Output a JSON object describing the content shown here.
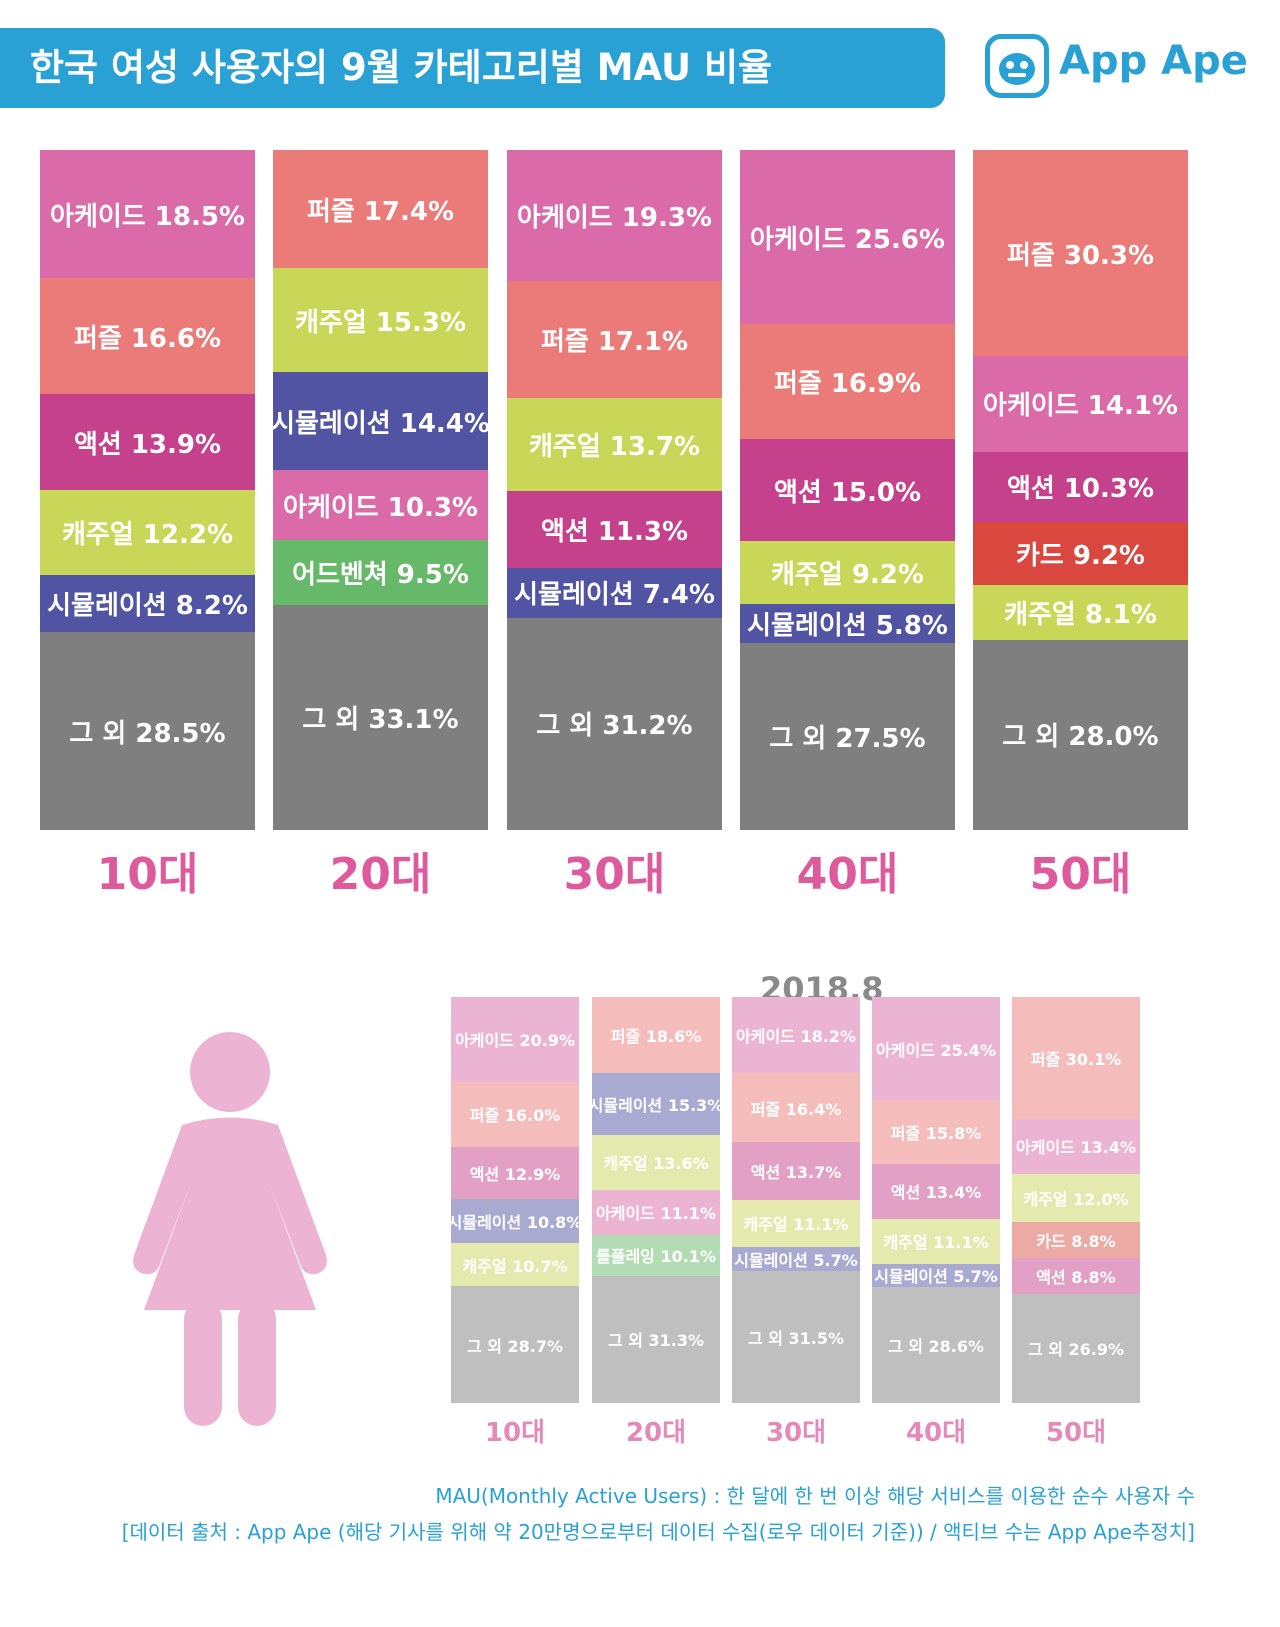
{
  "title": "한국 여성 사용자의 9월 카테고리별 MAU 비율",
  "brand": {
    "name": "App Ape",
    "color": "#29a1d4",
    "icon": "ape-face-icon"
  },
  "colors": {
    "아케이드": "#da6ba8",
    "퍼즐": "#ea7b79",
    "액션": "#c5418b",
    "캐주얼": "#c9d758",
    "시뮬레이션": "#5154a3",
    "어드벤쳐": "#67b96a",
    "카드": "#d9473f",
    "롤플레잉": "#67b96a",
    "그 외": "#7f7f7f"
  },
  "chart_data": [
    {
      "type": "bar",
      "stacked": true,
      "categories": [
        "10대",
        "20대",
        "30대",
        "40대",
        "50대"
      ],
      "columns": [
        {
          "age": "10대",
          "segments": [
            {
              "name": "아케이드",
              "value": 18.5,
              "label": "아케이드 18.5%"
            },
            {
              "name": "퍼즐",
              "value": 16.6,
              "label": "퍼즐 16.6%"
            },
            {
              "name": "액션",
              "value": 13.9,
              "label": "액션 13.9%"
            },
            {
              "name": "캐주얼",
              "value": 12.2,
              "label": "캐주얼 12.2%"
            },
            {
              "name": "시뮬레이션",
              "value": 8.2,
              "label": "시뮬레이션 8.2%"
            },
            {
              "name": "그 외",
              "value": 28.5,
              "label": "그 외 28.5%"
            }
          ]
        },
        {
          "age": "20대",
          "segments": [
            {
              "name": "퍼즐",
              "value": 17.4,
              "label": "퍼즐 17.4%"
            },
            {
              "name": "캐주얼",
              "value": 15.3,
              "label": "캐주얼 15.3%"
            },
            {
              "name": "시뮬레이션",
              "value": 14.4,
              "label": "시뮬레이션 14.4%"
            },
            {
              "name": "아케이드",
              "value": 10.3,
              "label": "아케이드 10.3%"
            },
            {
              "name": "어드벤쳐",
              "value": 9.5,
              "label": "어드벤쳐 9.5%"
            },
            {
              "name": "그 외",
              "value": 33.1,
              "label": "그 외 33.1%"
            }
          ]
        },
        {
          "age": "30대",
          "segments": [
            {
              "name": "아케이드",
              "value": 19.3,
              "label": "아케이드 19.3%"
            },
            {
              "name": "퍼즐",
              "value": 17.1,
              "label": "퍼즐 17.1%"
            },
            {
              "name": "캐주얼",
              "value": 13.7,
              "label": "캐주얼 13.7%"
            },
            {
              "name": "액션",
              "value": 11.3,
              "label": "액션 11.3%"
            },
            {
              "name": "시뮬레이션",
              "value": 7.4,
              "label": "시뮬레이션 7.4%"
            },
            {
              "name": "그 외",
              "value": 31.2,
              "label": "그 외 31.2%"
            }
          ]
        },
        {
          "age": "40대",
          "segments": [
            {
              "name": "아케이드",
              "value": 25.6,
              "label": "아케이드 25.6%"
            },
            {
              "name": "퍼즐",
              "value": 16.9,
              "label": "퍼즐 16.9%"
            },
            {
              "name": "액션",
              "value": 15.0,
              "label": "액션 15.0%"
            },
            {
              "name": "캐주얼",
              "value": 9.2,
              "label": "캐주얼 9.2%"
            },
            {
              "name": "시뮬레이션",
              "value": 5.8,
              "label": "시뮬레이션 5.8%"
            },
            {
              "name": "그 외",
              "value": 27.5,
              "label": "그 외 27.5%"
            }
          ]
        },
        {
          "age": "50대",
          "segments": [
            {
              "name": "퍼즐",
              "value": 30.3,
              "label": "퍼즐 30.3%"
            },
            {
              "name": "아케이드",
              "value": 14.1,
              "label": "아케이드 14.1%"
            },
            {
              "name": "액션",
              "value": 10.3,
              "label": "액션 10.3%"
            },
            {
              "name": "카드",
              "value": 9.2,
              "label": "카드 9.2%"
            },
            {
              "name": "캐주얼",
              "value": 8.1,
              "label": "캐주얼 8.1%"
            },
            {
              "name": "그 외",
              "value": 28.0,
              "label": "그 외 28.0%"
            }
          ]
        }
      ]
    },
    {
      "type": "bar",
      "stacked": true,
      "title": "2018.8",
      "faded": true,
      "categories": [
        "10대",
        "20대",
        "30대",
        "40대",
        "50대"
      ],
      "columns": [
        {
          "age": "10대",
          "segments": [
            {
              "name": "아케이드",
              "value": 20.9,
              "label": "아케이드 20.9%"
            },
            {
              "name": "퍼즐",
              "value": 16.0,
              "label": "퍼즐 16.0%"
            },
            {
              "name": "액션",
              "value": 12.9,
              "label": "액션 12.9%"
            },
            {
              "name": "시뮬레이션",
              "value": 10.8,
              "label": "시뮬레이션 10.8%"
            },
            {
              "name": "캐주얼",
              "value": 10.7,
              "label": "캐주얼 10.7%"
            },
            {
              "name": "그 외",
              "value": 28.7,
              "label": "그 외 28.7%"
            }
          ]
        },
        {
          "age": "20대",
          "segments": [
            {
              "name": "퍼즐",
              "value": 18.6,
              "label": "퍼즐 18.6%"
            },
            {
              "name": "시뮬레이션",
              "value": 15.3,
              "label": "시뮬레이션 15.3%"
            },
            {
              "name": "캐주얼",
              "value": 13.6,
              "label": "캐주얼 13.6%"
            },
            {
              "name": "아케이드",
              "value": 11.1,
              "label": "아케이드 11.1%"
            },
            {
              "name": "롤플레잉",
              "value": 10.1,
              "label": "롤플레잉 10.1%"
            },
            {
              "name": "그 외",
              "value": 31.3,
              "label": "그 외 31.3%"
            }
          ]
        },
        {
          "age": "30대",
          "segments": [
            {
              "name": "아케이드",
              "value": 18.2,
              "label": "아케이드 18.2%"
            },
            {
              "name": "퍼즐",
              "value": 16.4,
              "label": "퍼즐 16.4%"
            },
            {
              "name": "액션",
              "value": 13.7,
              "label": "액션 13.7%"
            },
            {
              "name": "캐주얼",
              "value": 11.1,
              "label": "캐주얼 11.1%"
            },
            {
              "name": "시뮬레이션",
              "value": 5.7,
              "label": "시뮬레이션 5.7%"
            },
            {
              "name": "그 외",
              "value": 31.5,
              "label": "그 외 31.5%"
            }
          ]
        },
        {
          "age": "40대",
          "segments": [
            {
              "name": "아케이드",
              "value": 25.4,
              "label": "아케이드 25.4%"
            },
            {
              "name": "퍼즐",
              "value": 15.8,
              "label": "퍼즐 15.8%"
            },
            {
              "name": "액션",
              "value": 13.4,
              "label": "액션 13.4%"
            },
            {
              "name": "캐주얼",
              "value": 11.1,
              "label": "캐주얼 11.1%"
            },
            {
              "name": "시뮬레이션",
              "value": 5.7,
              "label": "시뮬레이션 5.7%"
            },
            {
              "name": "그 외",
              "value": 28.6,
              "label": "그 외 28.6%"
            }
          ]
        },
        {
          "age": "50대",
          "segments": [
            {
              "name": "퍼즐",
              "value": 30.1,
              "label": "퍼즐 30.1%"
            },
            {
              "name": "아케이드",
              "value": 13.4,
              "label": "아케이드 13.4%"
            },
            {
              "name": "캐주얼",
              "value": 12.0,
              "label": "캐주얼 12.0%"
            },
            {
              "name": "카드",
              "value": 8.8,
              "label": "카드 8.8%"
            },
            {
              "name": "액션",
              "value": 8.8,
              "label": "액션 8.8%"
            },
            {
              "name": "그 외",
              "value": 26.9,
              "label": "그 외 26.9%"
            }
          ]
        }
      ]
    }
  ],
  "illustration": {
    "icon": "woman-icon",
    "color": "#ecb4d2"
  },
  "footnotes": {
    "definition": "MAU(Monthly Active Users) : 한 달에 한 번 이상 해당 서비스를 이용한 순수 사용자 수",
    "source": "[데이터 출처 : App Ape (해당 기사를 위해 약 20만명으로부터 데이터 수집(로우 데이터 기준)) / 액티브 수는 App Ape추정치]"
  }
}
